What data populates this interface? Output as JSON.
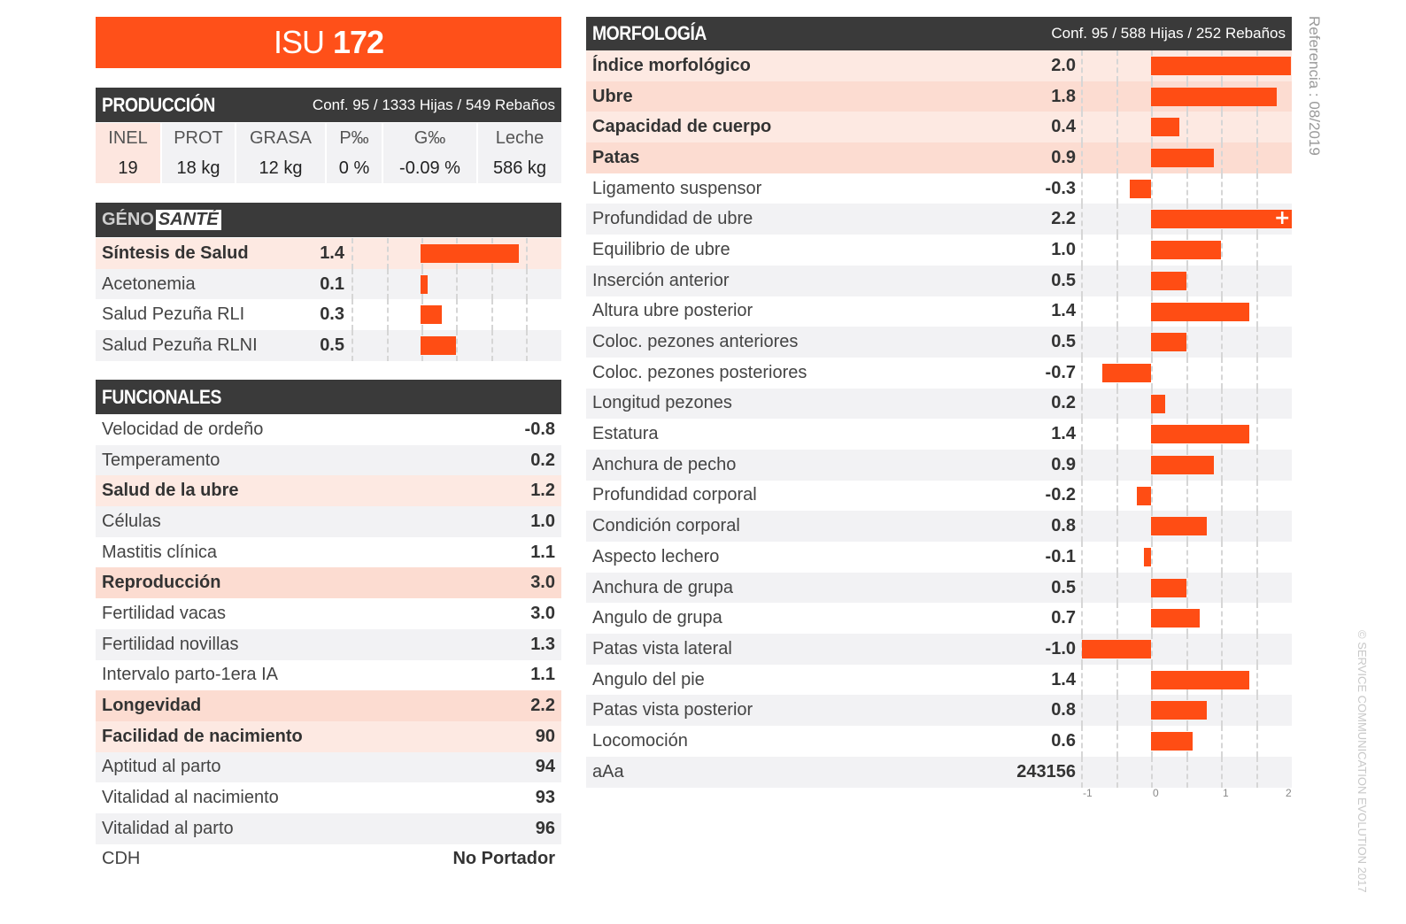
{
  "isu": {
    "label": "ISU",
    "value": "172"
  },
  "produccion": {
    "title": "PRODUCCIÓN",
    "conf": "Conf. 95 / 1333 Hijas / 549 Rebaños",
    "columns": [
      {
        "head": "INEL",
        "value": "19"
      },
      {
        "head": "PROT",
        "value": "18 kg"
      },
      {
        "head": "GRASA",
        "value": "12 kg"
      },
      {
        "head": "P‰",
        "value": "0 %"
      },
      {
        "head": "G‰",
        "value": "-0.09 %"
      },
      {
        "head": "Leche",
        "value": "586 kg"
      }
    ]
  },
  "genosante": {
    "logo_a": "GÉNO",
    "logo_b": "SANTÉ",
    "rows": [
      {
        "label": "Síntesis de Salud",
        "value": "1.4",
        "num": 1.4
      },
      {
        "label": "Acetonemia",
        "value": "0.1",
        "num": 0.1
      },
      {
        "label": "Salud Pezuña RLI",
        "value": "0.3",
        "num": 0.3
      },
      {
        "label": "Salud Pezuña RLNI",
        "value": "0.5",
        "num": 0.5
      }
    ]
  },
  "funcionales": {
    "title": "FUNCIONALES",
    "rows": [
      {
        "label": "Velocidad de ordeño",
        "value": "-0.8"
      },
      {
        "label": "Temperamento",
        "value": "0.2"
      },
      {
        "label": "Salud de la ubre",
        "value": "1.2"
      },
      {
        "label": "Células",
        "value": "1.0"
      },
      {
        "label": "Mastitis clínica",
        "value": "1.1"
      },
      {
        "label": "Reproducción",
        "value": "3.0"
      },
      {
        "label": "Fertilidad vacas",
        "value": "3.0"
      },
      {
        "label": "Fertilidad novillas",
        "value": "1.3"
      },
      {
        "label": "Intervalo parto-1era IA",
        "value": "1.1"
      },
      {
        "label": "Longevidad",
        "value": "2.2"
      },
      {
        "label": "Facilidad de nacimiento",
        "value": "90"
      },
      {
        "label": "Aptitud al parto",
        "value": "94"
      },
      {
        "label": "Vitalidad al nacimiento",
        "value": "93"
      },
      {
        "label": "Vitalidad al parto",
        "value": "96"
      },
      {
        "label": "CDH",
        "value": "No Portador"
      }
    ]
  },
  "morfologia": {
    "title": "MORFOLOGÍA",
    "conf": "Conf. 95 / 588 Hijas / 252 Rebaños",
    "rows": [
      {
        "label": "Índice morfológico",
        "value": "2.0",
        "num": 2.0
      },
      {
        "label": "Ubre",
        "value": "1.8",
        "num": 1.8
      },
      {
        "label": "Capacidad de cuerpo",
        "value": "0.4",
        "num": 0.4
      },
      {
        "label": "Patas",
        "value": "0.9",
        "num": 0.9
      },
      {
        "label": "Ligamento suspensor",
        "value": "-0.3",
        "num": -0.3
      },
      {
        "label": "Profundidad de ubre",
        "value": "2.2",
        "num": 2.2
      },
      {
        "label": "Equilibrio de ubre",
        "value": "1.0",
        "num": 1.0
      },
      {
        "label": "Inserción anterior",
        "value": "0.5",
        "num": 0.5
      },
      {
        "label": "Altura ubre posterior",
        "value": "1.4",
        "num": 1.4
      },
      {
        "label": "Coloc. pezones anteriores",
        "value": "0.5",
        "num": 0.5
      },
      {
        "label": "Coloc. pezones posteriores",
        "value": "-0.7",
        "num": -0.7
      },
      {
        "label": "Longitud pezones",
        "value": "0.2",
        "num": 0.2
      },
      {
        "label": "Estatura",
        "value": "1.4",
        "num": 1.4
      },
      {
        "label": "Anchura de pecho",
        "value": "0.9",
        "num": 0.9
      },
      {
        "label": "Profundidad corporal",
        "value": "-0.2",
        "num": -0.2
      },
      {
        "label": "Condición corporal",
        "value": "0.8",
        "num": 0.8
      },
      {
        "label": "Aspecto lechero",
        "value": "-0.1",
        "num": -0.1
      },
      {
        "label": "Anchura de grupa",
        "value": "0.5",
        "num": 0.5
      },
      {
        "label": "Angulo de grupa",
        "value": "0.7",
        "num": 0.7
      },
      {
        "label": "Patas vista lateral",
        "value": "-1.0",
        "num": -1.0
      },
      {
        "label": "Angulo del pie",
        "value": "1.4",
        "num": 1.4
      },
      {
        "label": "Patas vista posterior",
        "value": "0.8",
        "num": 0.8
      },
      {
        "label": "Locomoción",
        "value": "0.6",
        "num": 0.6
      },
      {
        "label": "aAa",
        "value": "243156",
        "num": null
      }
    ],
    "axis_ticks": [
      "-1",
      "0",
      "1",
      "2"
    ],
    "overflow_mark": "+"
  },
  "referencia": "Referencia : 08/2019",
  "copyright": "© SERVICE COMMUNICATION EVOLUTION 2017"
}
